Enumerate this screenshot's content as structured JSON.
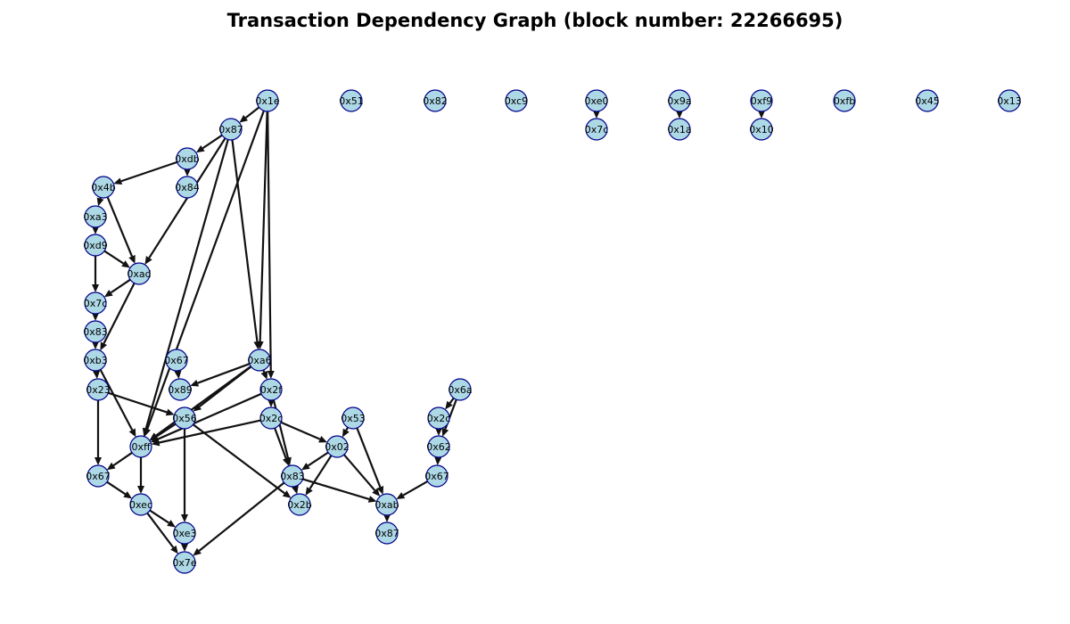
{
  "title": "Transaction Dependency Graph (block number: 22266695)",
  "colors": {
    "node_fill": "#add8e6",
    "node_stroke": "#00008b",
    "edge": "#111111"
  },
  "nodes": [
    {
      "id": "n_1e",
      "label": "0x1e"
    },
    {
      "id": "n_51",
      "label": "0x51"
    },
    {
      "id": "n_82",
      "label": "0x82"
    },
    {
      "id": "n_c9",
      "label": "0xc9"
    },
    {
      "id": "n_e0",
      "label": "0xe0"
    },
    {
      "id": "n_9a",
      "label": "0x9a"
    },
    {
      "id": "n_f9",
      "label": "0xf9"
    },
    {
      "id": "n_fb",
      "label": "0xfb"
    },
    {
      "id": "n_45",
      "label": "0x45"
    },
    {
      "id": "n_13",
      "label": "0x13"
    },
    {
      "id": "n_87a",
      "label": "0x87"
    },
    {
      "id": "n_7c1",
      "label": "0x7c"
    },
    {
      "id": "n_1a",
      "label": "0x1a"
    },
    {
      "id": "n_10",
      "label": "0x10"
    },
    {
      "id": "n_db",
      "label": "0xdb"
    },
    {
      "id": "n_4b",
      "label": "0x4b"
    },
    {
      "id": "n_84",
      "label": "0x84"
    },
    {
      "id": "n_a3",
      "label": "0xa3"
    },
    {
      "id": "n_d9",
      "label": "0xd9"
    },
    {
      "id": "n_ad",
      "label": "0xad"
    },
    {
      "id": "n_7c2",
      "label": "0x7c"
    },
    {
      "id": "n_83a",
      "label": "0x83"
    },
    {
      "id": "n_b3",
      "label": "0xb3"
    },
    {
      "id": "n_67a",
      "label": "0x67"
    },
    {
      "id": "n_a6",
      "label": "0xa6"
    },
    {
      "id": "n_23",
      "label": "0x23"
    },
    {
      "id": "n_89",
      "label": "0x89"
    },
    {
      "id": "n_2f",
      "label": "0x2f"
    },
    {
      "id": "n_6a",
      "label": "0x6a"
    },
    {
      "id": "n_56",
      "label": "0x56"
    },
    {
      "id": "n_2c1",
      "label": "0x2c"
    },
    {
      "id": "n_53",
      "label": "0x53"
    },
    {
      "id": "n_2c2",
      "label": "0x2c"
    },
    {
      "id": "n_ff",
      "label": "0xff"
    },
    {
      "id": "n_02",
      "label": "0x02"
    },
    {
      "id": "n_62",
      "label": "0x62"
    },
    {
      "id": "n_67b",
      "label": "0x67"
    },
    {
      "id": "n_83b",
      "label": "0x83"
    },
    {
      "id": "n_67c",
      "label": "0x67"
    },
    {
      "id": "n_ec",
      "label": "0xec"
    },
    {
      "id": "n_2b",
      "label": "0x2b"
    },
    {
      "id": "n_ab",
      "label": "0xab"
    },
    {
      "id": "n_e3",
      "label": "0xe3"
    },
    {
      "id": "n_87b",
      "label": "0x87"
    },
    {
      "id": "n_7e",
      "label": "0x7e"
    }
  ],
  "edges": [
    [
      "n_e0",
      "n_7c1"
    ],
    [
      "n_9a",
      "n_1a"
    ],
    [
      "n_f9",
      "n_10"
    ],
    [
      "n_1e",
      "n_87a"
    ],
    [
      "n_1e",
      "n_a6"
    ],
    [
      "n_1e",
      "n_2f"
    ],
    [
      "n_1e",
      "n_ff"
    ],
    [
      "n_87a",
      "n_db"
    ],
    [
      "n_87a",
      "n_a6"
    ],
    [
      "n_87a",
      "n_ff"
    ],
    [
      "n_87a",
      "n_ad"
    ],
    [
      "n_db",
      "n_4b"
    ],
    [
      "n_db",
      "n_84"
    ],
    [
      "n_4b",
      "n_a3"
    ],
    [
      "n_4b",
      "n_ad"
    ],
    [
      "n_a3",
      "n_d9"
    ],
    [
      "n_d9",
      "n_7c2"
    ],
    [
      "n_d9",
      "n_ad"
    ],
    [
      "n_ad",
      "n_7c2"
    ],
    [
      "n_ad",
      "n_b3"
    ],
    [
      "n_7c2",
      "n_83a"
    ],
    [
      "n_83a",
      "n_b3"
    ],
    [
      "n_b3",
      "n_23"
    ],
    [
      "n_b3",
      "n_ff"
    ],
    [
      "n_23",
      "n_56"
    ],
    [
      "n_23",
      "n_67b"
    ],
    [
      "n_67a",
      "n_89"
    ],
    [
      "n_a6",
      "n_89"
    ],
    [
      "n_a6",
      "n_56"
    ],
    [
      "n_a6",
      "n_ff"
    ],
    [
      "n_a6",
      "n_2f"
    ],
    [
      "n_2f",
      "n_2c1"
    ],
    [
      "n_2f",
      "n_83b"
    ],
    [
      "n_2f",
      "n_ff"
    ],
    [
      "n_2c1",
      "n_02"
    ],
    [
      "n_2c1",
      "n_83b"
    ],
    [
      "n_2c1",
      "n_ff"
    ],
    [
      "n_56",
      "n_ff"
    ],
    [
      "n_56",
      "n_e3"
    ],
    [
      "n_56",
      "n_2b"
    ],
    [
      "n_ff",
      "n_67b"
    ],
    [
      "n_ff",
      "n_ec"
    ],
    [
      "n_67b",
      "n_ec"
    ],
    [
      "n_ec",
      "n_e3"
    ],
    [
      "n_ec",
      "n_7e"
    ],
    [
      "n_e3",
      "n_7e"
    ],
    [
      "n_53",
      "n_02"
    ],
    [
      "n_53",
      "n_ab"
    ],
    [
      "n_02",
      "n_83b"
    ],
    [
      "n_02",
      "n_2b"
    ],
    [
      "n_02",
      "n_ab"
    ],
    [
      "n_83b",
      "n_2b"
    ],
    [
      "n_83b",
      "n_ab"
    ],
    [
      "n_83b",
      "n_7e"
    ],
    [
      "n_6a",
      "n_2c2"
    ],
    [
      "n_6a",
      "n_62"
    ],
    [
      "n_2c2",
      "n_62"
    ],
    [
      "n_62",
      "n_67c"
    ],
    [
      "n_67c",
      "n_ab"
    ],
    [
      "n_ab",
      "n_87b"
    ]
  ]
}
